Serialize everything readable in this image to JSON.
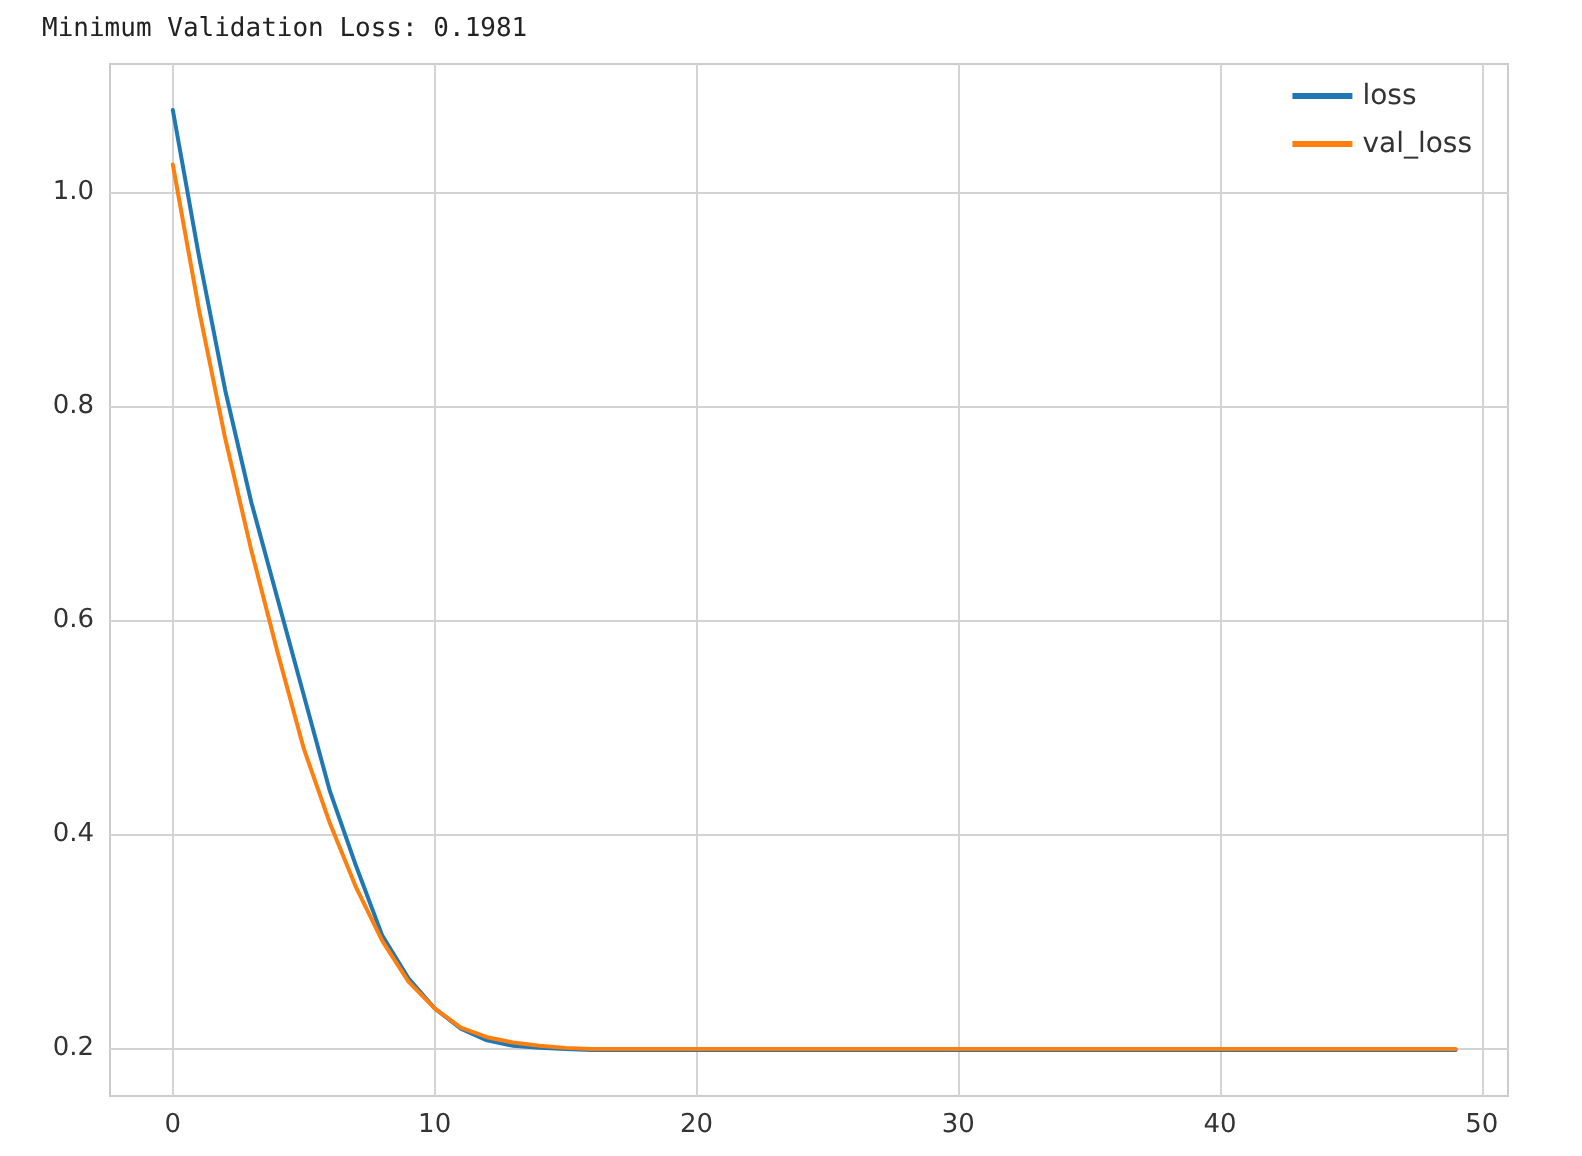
{
  "chart_data": {
    "type": "line",
    "title": "Minimum Validation Loss: 0.1981",
    "x": [
      0,
      1,
      2,
      3,
      4,
      5,
      6,
      7,
      8,
      9,
      10,
      11,
      12,
      13,
      14,
      15,
      16,
      17,
      18,
      19,
      20,
      21,
      22,
      23,
      24,
      25,
      26,
      27,
      28,
      29,
      30,
      31,
      32,
      33,
      34,
      35,
      36,
      37,
      38,
      39,
      40,
      41,
      42,
      43,
      44,
      45,
      46,
      47,
      48,
      49
    ],
    "series": [
      {
        "name": "loss",
        "color": "#1f77b4",
        "values": [
          1.077,
          0.94,
          0.815,
          0.71,
          0.62,
          0.53,
          0.44,
          0.37,
          0.305,
          0.265,
          0.237,
          0.218,
          0.207,
          0.202,
          0.2,
          0.199,
          0.198,
          0.198,
          0.198,
          0.198,
          0.198,
          0.198,
          0.198,
          0.198,
          0.198,
          0.198,
          0.198,
          0.198,
          0.198,
          0.198,
          0.198,
          0.198,
          0.198,
          0.198,
          0.198,
          0.198,
          0.198,
          0.198,
          0.198,
          0.198,
          0.198,
          0.198,
          0.198,
          0.198,
          0.198,
          0.198,
          0.198,
          0.198,
          0.198,
          0.198
        ]
      },
      {
        "name": "val_loss",
        "color": "#ff7f0e",
        "values": [
          1.026,
          0.89,
          0.77,
          0.665,
          0.57,
          0.48,
          0.41,
          0.35,
          0.3,
          0.262,
          0.237,
          0.219,
          0.21,
          0.205,
          0.202,
          0.2,
          0.199,
          0.199,
          0.199,
          0.199,
          0.199,
          0.199,
          0.199,
          0.199,
          0.199,
          0.199,
          0.199,
          0.199,
          0.199,
          0.199,
          0.199,
          0.199,
          0.199,
          0.199,
          0.199,
          0.199,
          0.199,
          0.199,
          0.199,
          0.199,
          0.199,
          0.199,
          0.199,
          0.199,
          0.199,
          0.199,
          0.199,
          0.199,
          0.199,
          0.199
        ]
      }
    ],
    "xlim": [
      -2.4,
      51
    ],
    "xticks": [
      0,
      10,
      20,
      30,
      40,
      50
    ],
    "ylim": [
      0.155,
      1.12
    ],
    "yticks": [
      0.2,
      0.4,
      0.6,
      0.8,
      {
        "value": 1,
        "label": "1.0"
      }
    ],
    "grid": true,
    "legend": "top right",
    "marker": "none",
    "line_style": "solid"
  }
}
